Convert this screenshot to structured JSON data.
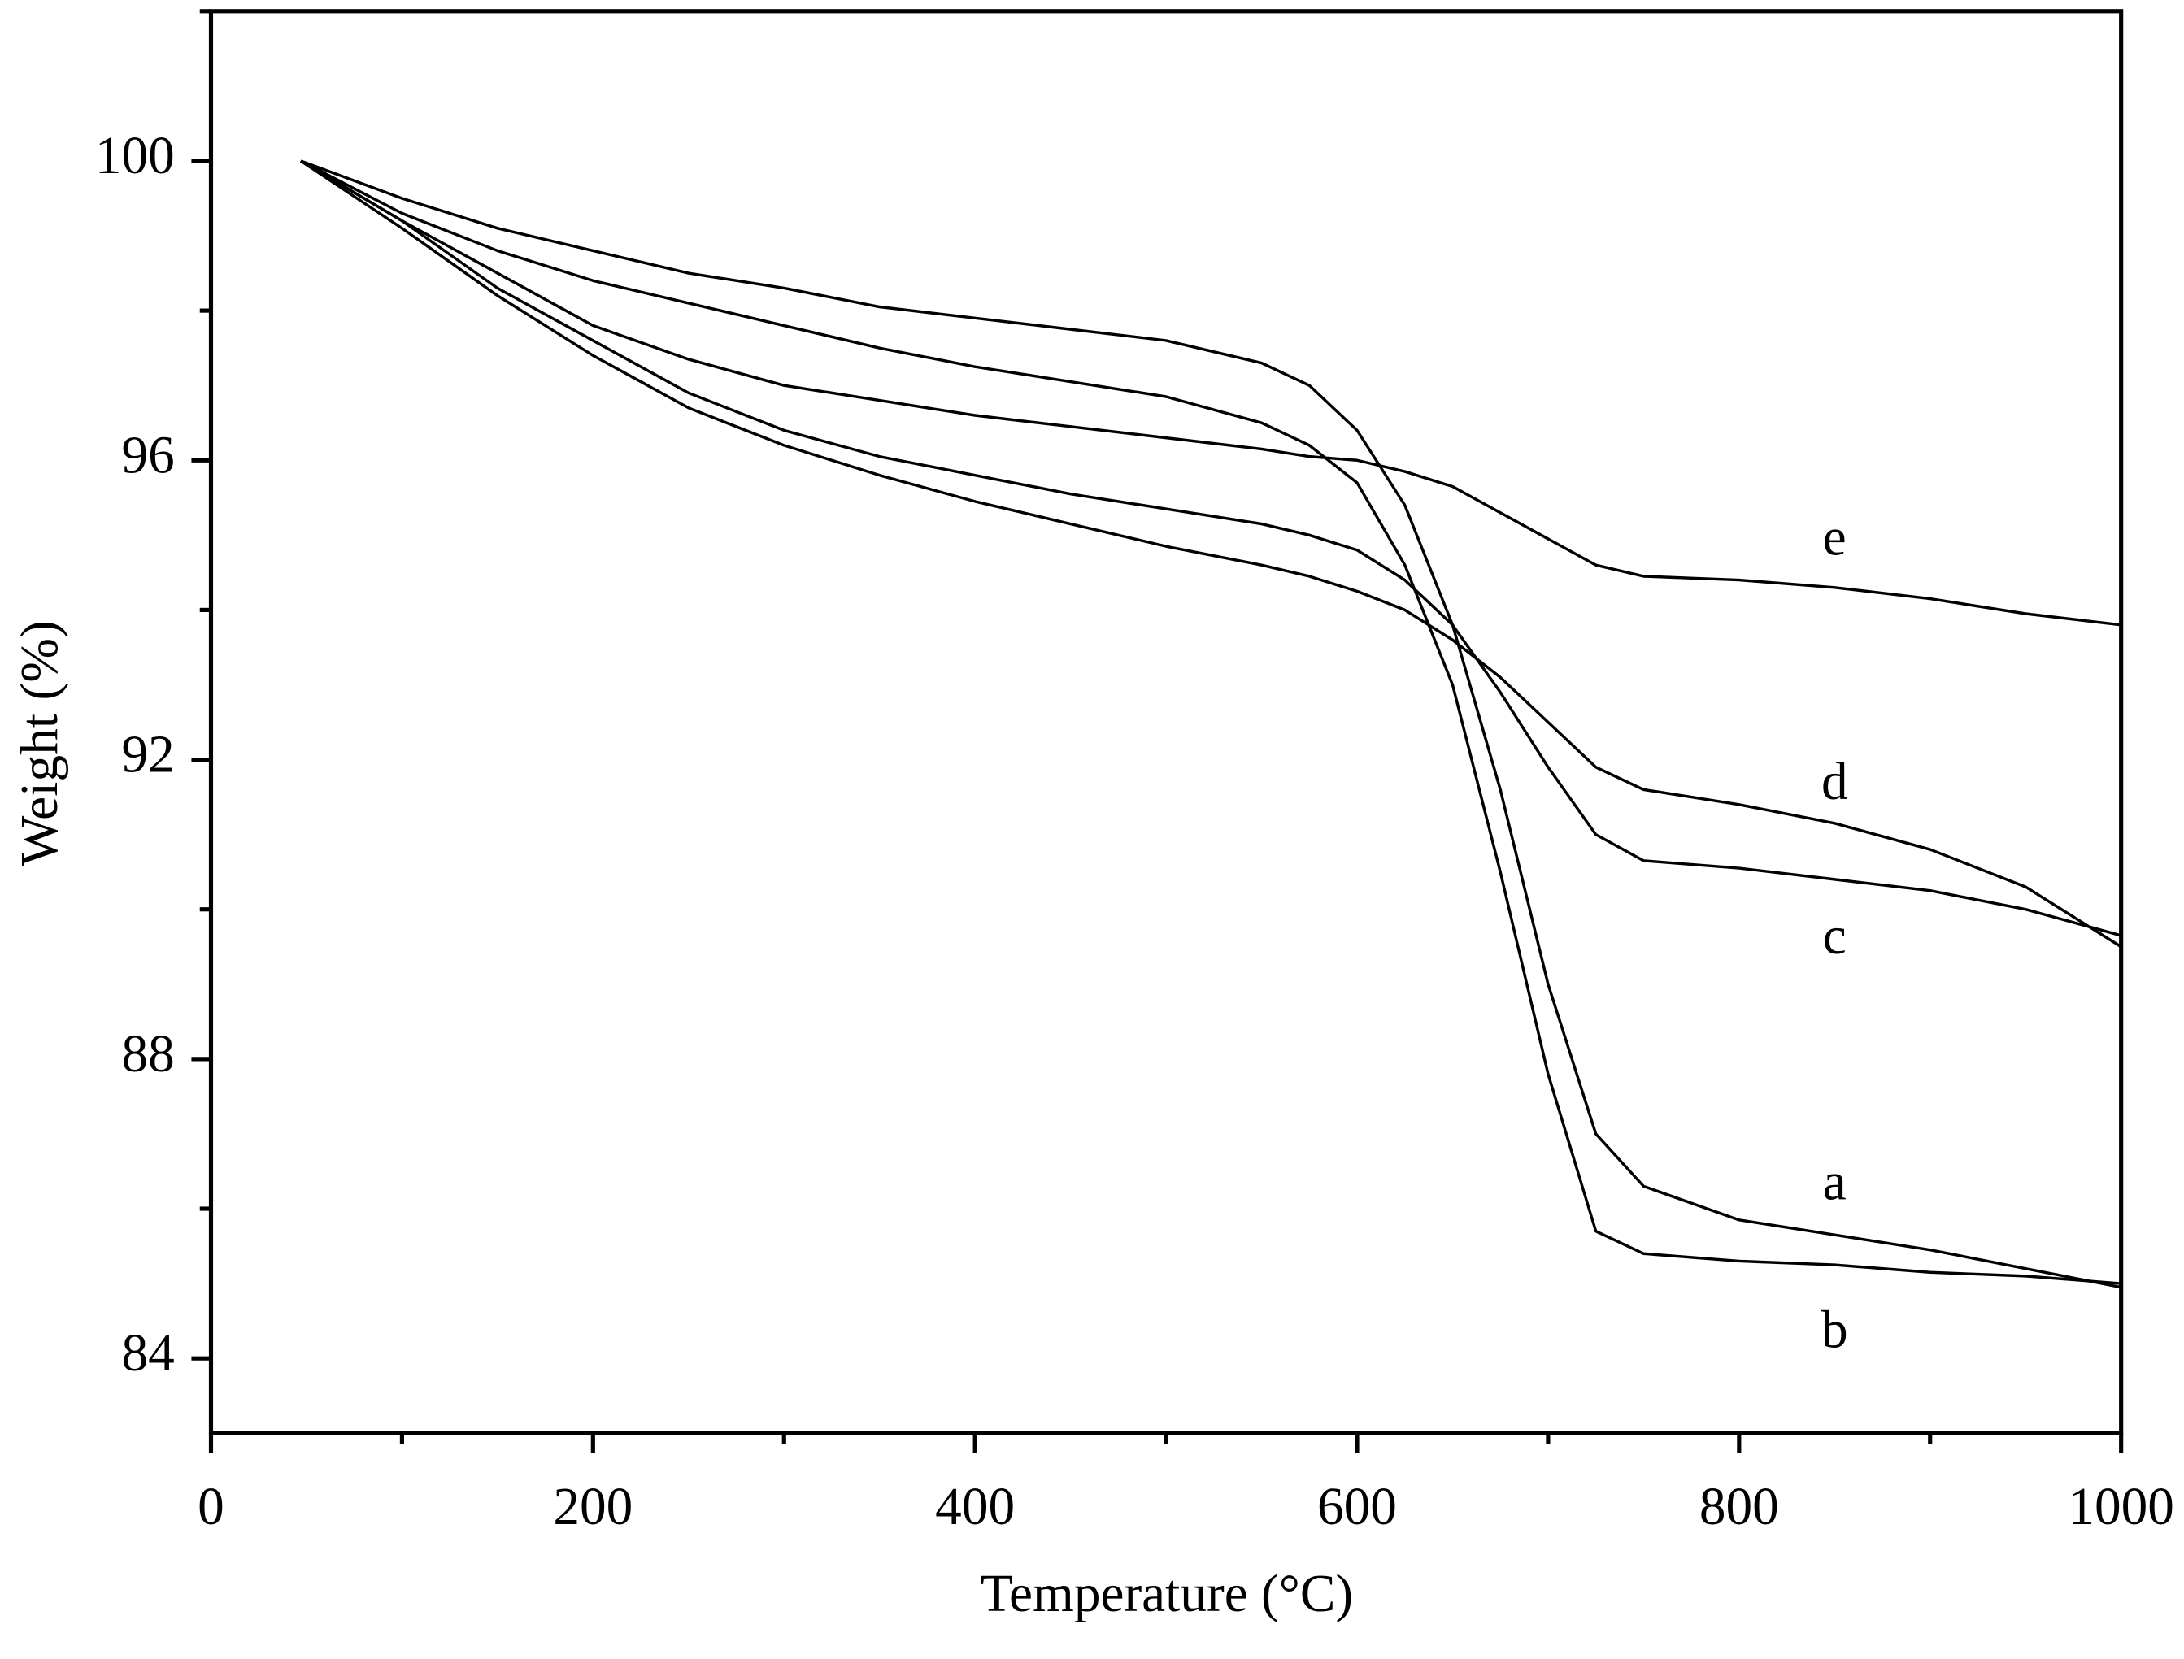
{
  "chart_data": {
    "type": "line",
    "x_label": "Temperature (°C)",
    "y_label": "Weight (%)",
    "xlim": [
      0,
      1000
    ],
    "ylim": [
      83,
      102
    ],
    "xticks": [
      0,
      200,
      400,
      600,
      800,
      1000
    ],
    "yticks": [
      84,
      88,
      92,
      96,
      100
    ],
    "xminorticks": [
      100,
      300,
      500,
      700,
      900
    ],
    "yminorticks": [
      86,
      90,
      94,
      98,
      102
    ],
    "grid": false,
    "x": [
      47,
      100,
      150,
      200,
      250,
      300,
      350,
      400,
      450,
      500,
      550,
      575,
      600,
      625,
      650,
      675,
      700,
      725,
      750,
      800,
      850,
      900,
      950,
      1000
    ],
    "series": [
      {
        "name": "a",
        "color": "#000000",
        "values": [
          100,
          99.5,
          99.1,
          98.8,
          98.5,
          98.3,
          98.05,
          97.9,
          97.75,
          97.6,
          97.3,
          97.0,
          96.4,
          95.4,
          93.8,
          91.6,
          89.0,
          87.0,
          86.3,
          85.85,
          85.65,
          85.45,
          85.2,
          84.95
        ]
      },
      {
        "name": "b",
        "color": "#000000",
        "values": [
          100,
          99.3,
          98.8,
          98.4,
          98.1,
          97.8,
          97.5,
          97.25,
          97.05,
          96.85,
          96.5,
          96.2,
          95.7,
          94.6,
          93.0,
          90.5,
          87.8,
          85.7,
          85.4,
          85.3,
          85.25,
          85.15,
          85.1,
          85.0
        ]
      },
      {
        "name": "c",
        "color": "#000000",
        "values": [
          100,
          99.2,
          98.3,
          97.6,
          96.9,
          96.4,
          96.05,
          95.8,
          95.55,
          95.35,
          95.15,
          95.0,
          94.8,
          94.4,
          93.8,
          92.9,
          91.9,
          91.0,
          90.65,
          90.55,
          90.4,
          90.25,
          90.0,
          89.65
        ]
      },
      {
        "name": "d",
        "color": "#000000",
        "values": [
          100,
          99.1,
          98.2,
          97.4,
          96.7,
          96.2,
          95.8,
          95.45,
          95.15,
          94.85,
          94.6,
          94.45,
          94.25,
          94.0,
          93.6,
          93.1,
          92.5,
          91.9,
          91.6,
          91.4,
          91.15,
          90.8,
          90.3,
          89.5
        ]
      },
      {
        "name": "e",
        "color": "#000000",
        "values": [
          100,
          99.2,
          98.5,
          97.8,
          97.35,
          97.0,
          96.8,
          96.6,
          96.45,
          96.3,
          96.15,
          96.05,
          96.0,
          95.85,
          95.65,
          95.3,
          94.95,
          94.6,
          94.45,
          94.4,
          94.3,
          94.15,
          93.95,
          93.8
        ]
      }
    ]
  }
}
